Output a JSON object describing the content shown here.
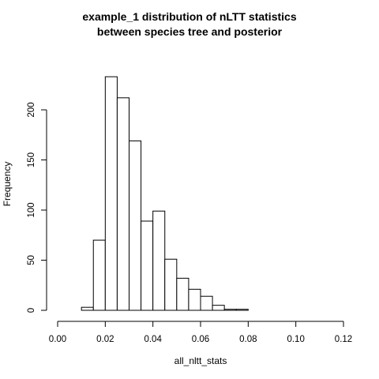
{
  "chart_data": {
    "type": "bar",
    "title": "example_1  distribution of nLTT statistics",
    "subtitle": "between species tree and posterior",
    "xlabel": "all_nltt_stats",
    "ylabel": "Frequency",
    "xlim": [
      0,
      0.12
    ],
    "ylim": [
      0,
      240
    ],
    "x_ticks": [
      "0.00",
      "0.02",
      "0.04",
      "0.06",
      "0.08",
      "0.10",
      "0.12"
    ],
    "y_ticks": [
      "0",
      "50",
      "100",
      "150",
      "200"
    ],
    "bin_width": 0.005,
    "bins": [
      {
        "start": 0.01,
        "end": 0.015,
        "value": 3
      },
      {
        "start": 0.015,
        "end": 0.02,
        "value": 70
      },
      {
        "start": 0.02,
        "end": 0.025,
        "value": 233
      },
      {
        "start": 0.025,
        "end": 0.03,
        "value": 212
      },
      {
        "start": 0.03,
        "end": 0.035,
        "value": 169
      },
      {
        "start": 0.035,
        "end": 0.04,
        "value": 89
      },
      {
        "start": 0.04,
        "end": 0.045,
        "value": 99
      },
      {
        "start": 0.045,
        "end": 0.05,
        "value": 51
      },
      {
        "start": 0.05,
        "end": 0.055,
        "value": 32
      },
      {
        "start": 0.055,
        "end": 0.06,
        "value": 21
      },
      {
        "start": 0.06,
        "end": 0.065,
        "value": 14
      },
      {
        "start": 0.065,
        "end": 0.07,
        "value": 5
      },
      {
        "start": 0.07,
        "end": 0.075,
        "value": 1
      },
      {
        "start": 0.075,
        "end": 0.08,
        "value": 1
      }
    ],
    "bar_fill": "#ffffff",
    "bar_stroke": "#000000",
    "grid": false,
    "legend": "none"
  }
}
